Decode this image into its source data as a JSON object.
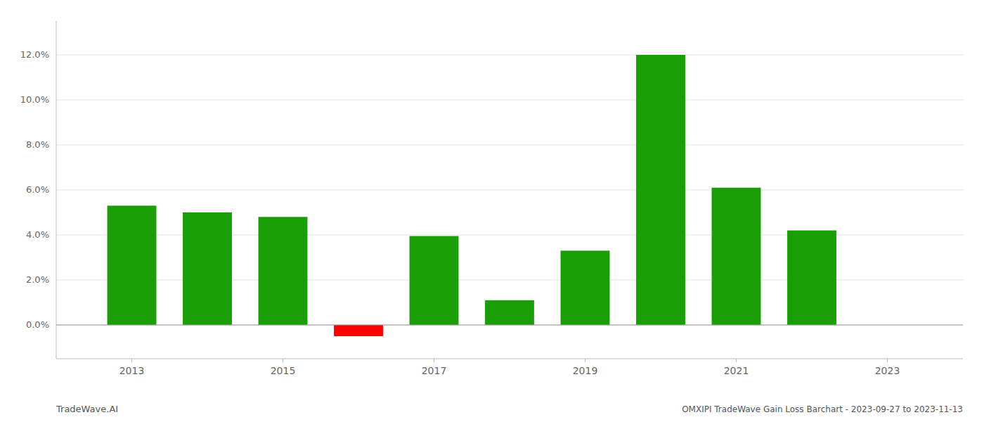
{
  "chart_data": {
    "type": "bar",
    "title": "OMXIPI TradeWave Gain Loss Barchart - 2023-09-27 to 2023-11-13",
    "annotations": [
      "TradeWave.AI"
    ],
    "x": [
      2013,
      2014,
      2015,
      2016,
      2017,
      2018,
      2019,
      2020,
      2021,
      2022,
      2023
    ],
    "values": [
      0.053,
      0.05,
      0.048,
      -0.005,
      0.0395,
      0.011,
      0.033,
      0.12,
      0.061,
      0.042,
      0.0
    ],
    "colors": [
      "#1a9e06",
      "#1a9e06",
      "#1a9e06",
      "#ff0000",
      "#1a9e06",
      "#1a9e06",
      "#1a9e06",
      "#1a9e06",
      "#1a9e06",
      "#1a9e06",
      "#1a9e06"
    ],
    "xlim": [
      2012,
      2024
    ],
    "xticks": [
      2013,
      2015,
      2017,
      2019,
      2021,
      2023
    ],
    "ylim": [
      -0.015,
      0.135
    ],
    "yticks": [
      {
        "value": 0.0,
        "label": "0.0%"
      },
      {
        "value": 0.02,
        "label": "2.0%"
      },
      {
        "value": 0.04,
        "label": "4.0%"
      },
      {
        "value": 0.06,
        "label": "6.0%"
      },
      {
        "value": 0.08,
        "label": "8.0%"
      },
      {
        "value": 0.1,
        "label": "10.0%"
      },
      {
        "value": 0.12,
        "label": "12.0%"
      }
    ],
    "grid": true
  }
}
